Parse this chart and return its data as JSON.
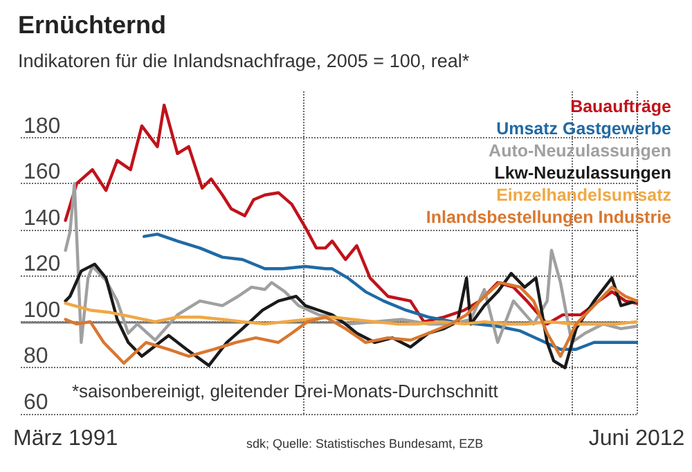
{
  "chart_data": {
    "type": "line",
    "title": "Ernüchternd",
    "subtitle": "Indikatoren für die Inlandsnachfrage, 2005 = 100, real*",
    "annotations": [
      "*saisonbereinigt, gleitender Drei-Monats-Durchschnitt",
      "sdk; Quelle: Statistisches Bundesamt, EZB"
    ],
    "xlim": [
      "1989-07",
      "2012-06"
    ],
    "xticks": [
      {
        "value": "1991-03",
        "label": "März 1991"
      },
      {
        "value": "2000-01",
        "label": null
      },
      {
        "value": "2010-01",
        "label": null
      },
      {
        "value": "2012-06",
        "label": "Juni 2012"
      }
    ],
    "ylim": [
      60,
      200
    ],
    "yticks": [
      60,
      80,
      100,
      120,
      140,
      160,
      180
    ],
    "grid": true,
    "legend": "top right",
    "marker": "none",
    "line_style": "solid",
    "ref_lines": [
      {
        "axis": "y",
        "value": 100,
        "label": null,
        "color": "#777777"
      }
    ],
    "series": [
      {
        "name": "Bauaufträge",
        "color": "#c0121b",
        "x": [
          "1991-03",
          "1991-08",
          "1992-03",
          "1992-09",
          "1993-02",
          "1993-08",
          "1994-01",
          "1994-08",
          "1994-11",
          "1995-05",
          "1995-10",
          "1996-04",
          "1996-08",
          "1997-01",
          "1997-05",
          "1997-11",
          "1998-03",
          "1998-08",
          "1999-02",
          "1999-08",
          "2000-02",
          "2000-07",
          "2000-11",
          "2001-02",
          "2001-08",
          "2002-01",
          "2002-07",
          "2003-03",
          "2004-01",
          "2004-07",
          "2005-04",
          "2006-01",
          "2006-08",
          "2007-04",
          "2007-11",
          "2008-05",
          "2009-02",
          "2009-09",
          "2010-05",
          "2011-01",
          "2011-07",
          "2012-01",
          "2012-06"
        ],
        "values": [
          144,
          160,
          166,
          157,
          170,
          166,
          185,
          176,
          194,
          173,
          176,
          158,
          162,
          155,
          149,
          146,
          153,
          155,
          156,
          151,
          141,
          132,
          132,
          135,
          127,
          133,
          119,
          111,
          109,
          100,
          102,
          105,
          109,
          117,
          115,
          109,
          99,
          103,
          103,
          109,
          113,
          109,
          108
        ]
      },
      {
        "name": "Umsatz Gastgewerbe",
        "color": "#1f6aa5",
        "x": [
          "1994-02",
          "1994-08",
          "1995-05",
          "1996-03",
          "1997-01",
          "1997-10",
          "1998-08",
          "1999-04",
          "2000-02",
          "2000-11",
          "2001-02",
          "2001-09",
          "2002-05",
          "2003-01",
          "2003-11",
          "2004-09",
          "2005-08",
          "2006-07",
          "2007-04",
          "2008-02",
          "2008-11",
          "2009-08",
          "2010-03",
          "2010-11",
          "2011-07",
          "2012-06"
        ],
        "values": [
          137,
          138,
          135,
          132,
          128,
          127,
          123,
          123,
          124,
          123,
          123,
          119,
          113,
          109,
          105,
          102,
          100,
          99,
          98,
          96,
          92,
          88,
          88,
          91,
          91,
          91
        ]
      },
      {
        "name": "Auto-Neuzulassungen",
        "color": "#a0a0a0",
        "x": [
          "1991-03",
          "1991-05",
          "1991-07",
          "1991-10",
          "1992-01",
          "1992-03",
          "1992-09",
          "1993-02",
          "1993-07",
          "1993-11",
          "1994-07",
          "1995-05",
          "1996-03",
          "1997-01",
          "1997-08",
          "1998-02",
          "1998-08",
          "1998-11",
          "1999-05",
          "1999-11",
          "2000-08",
          "2001-02",
          "2001-09",
          "2002-09",
          "2003-09",
          "2004-09",
          "2005-07",
          "2006-04",
          "2006-10",
          "2007-04",
          "2007-11",
          "2008-08",
          "2009-02",
          "2009-04",
          "2009-08",
          "2010-01",
          "2010-07",
          "2011-03",
          "2011-11",
          "2012-06"
        ],
        "values": [
          131,
          139,
          160,
          91,
          119,
          124,
          118,
          109,
          95,
          99,
          92,
          103,
          109,
          107,
          111,
          115,
          114,
          117,
          113,
          107,
          103,
          102,
          99,
          100,
          101,
          99,
          99,
          101,
          114,
          91,
          109,
          99,
          109,
          131,
          117,
          91,
          95,
          99,
          97,
          98
        ]
      },
      {
        "name": "Lkw-Neuzulassungen",
        "color": "#1a1a1a",
        "x": [
          "1991-03",
          "1991-05",
          "1991-10",
          "1992-04",
          "1992-09",
          "1993-02",
          "1993-07",
          "1994-01",
          "1994-09",
          "1995-01",
          "1995-09",
          "1996-07",
          "1997-03",
          "1997-10",
          "1998-07",
          "1999-02",
          "1999-10",
          "2000-02",
          "2000-08",
          "2001-02",
          "2001-08",
          "2002-01",
          "2002-09",
          "2003-05",
          "2004-01",
          "2004-09",
          "2005-04",
          "2005-10",
          "2006-02",
          "2006-04",
          "2006-10",
          "2007-04",
          "2007-10",
          "2008-04",
          "2008-09",
          "2009-02",
          "2009-05",
          "2009-10",
          "2010-03",
          "2010-11",
          "2011-07",
          "2011-11",
          "2012-06"
        ],
        "values": [
          109,
          111,
          122,
          125,
          119,
          101,
          91,
          85,
          91,
          94,
          88,
          81,
          91,
          97,
          105,
          109,
          111,
          107,
          105,
          103,
          99,
          95,
          91,
          93,
          89,
          95,
          97,
          100,
          119,
          99,
          107,
          113,
          121,
          115,
          119,
          91,
          83,
          80,
          97,
          109,
          119,
          107,
          109
        ]
      },
      {
        "name": "Einzelhandelsumsatz",
        "color": "#f0a845",
        "x": [
          "1991-03",
          "1992-02",
          "1992-11",
          "1993-09",
          "1994-07",
          "1995-05",
          "1996-03",
          "1997-01",
          "1997-10",
          "1998-08",
          "1999-05",
          "2000-03",
          "2001-02",
          "2001-11",
          "2002-09",
          "2003-07",
          "2004-04",
          "2005-03",
          "2006-01",
          "2006-10",
          "2007-08",
          "2008-05",
          "2009-03",
          "2010-02",
          "2010-11",
          "2011-09",
          "2012-06"
        ],
        "values": [
          108,
          105,
          104,
          102,
          100,
          102,
          102,
          101,
          100,
          99,
          100,
          101,
          102,
          101,
          100,
          99,
          99,
          100,
          99,
          100,
          99,
          99,
          100,
          99,
          99,
          99,
          100
        ]
      },
      {
        "name": "Inlandsbestellungen Industrie",
        "color": "#d9772f",
        "x": [
          "1991-03",
          "1991-08",
          "1992-02",
          "1992-08",
          "1993-02",
          "1993-05",
          "1994-03",
          "1995-01",
          "1995-10",
          "1996-09",
          "1997-07",
          "1998-04",
          "1999-02",
          "1999-08",
          "2000-03",
          "2000-11",
          "2001-08",
          "2002-05",
          "2003-03",
          "2004-01",
          "2004-09",
          "2005-07",
          "2006-02",
          "2006-10",
          "2007-05",
          "2008-02",
          "2008-08",
          "2009-02",
          "2009-08",
          "2010-03",
          "2010-11",
          "2011-07",
          "2012-01",
          "2012-06"
        ],
        "values": [
          101,
          99,
          100,
          91,
          85,
          82,
          91,
          88,
          85,
          88,
          91,
          93,
          91,
          95,
          100,
          102,
          97,
          91,
          93,
          92,
          95,
          99,
          103,
          111,
          117,
          115,
          109,
          95,
          85,
          99,
          107,
          115,
          111,
          109
        ]
      }
    ]
  }
}
